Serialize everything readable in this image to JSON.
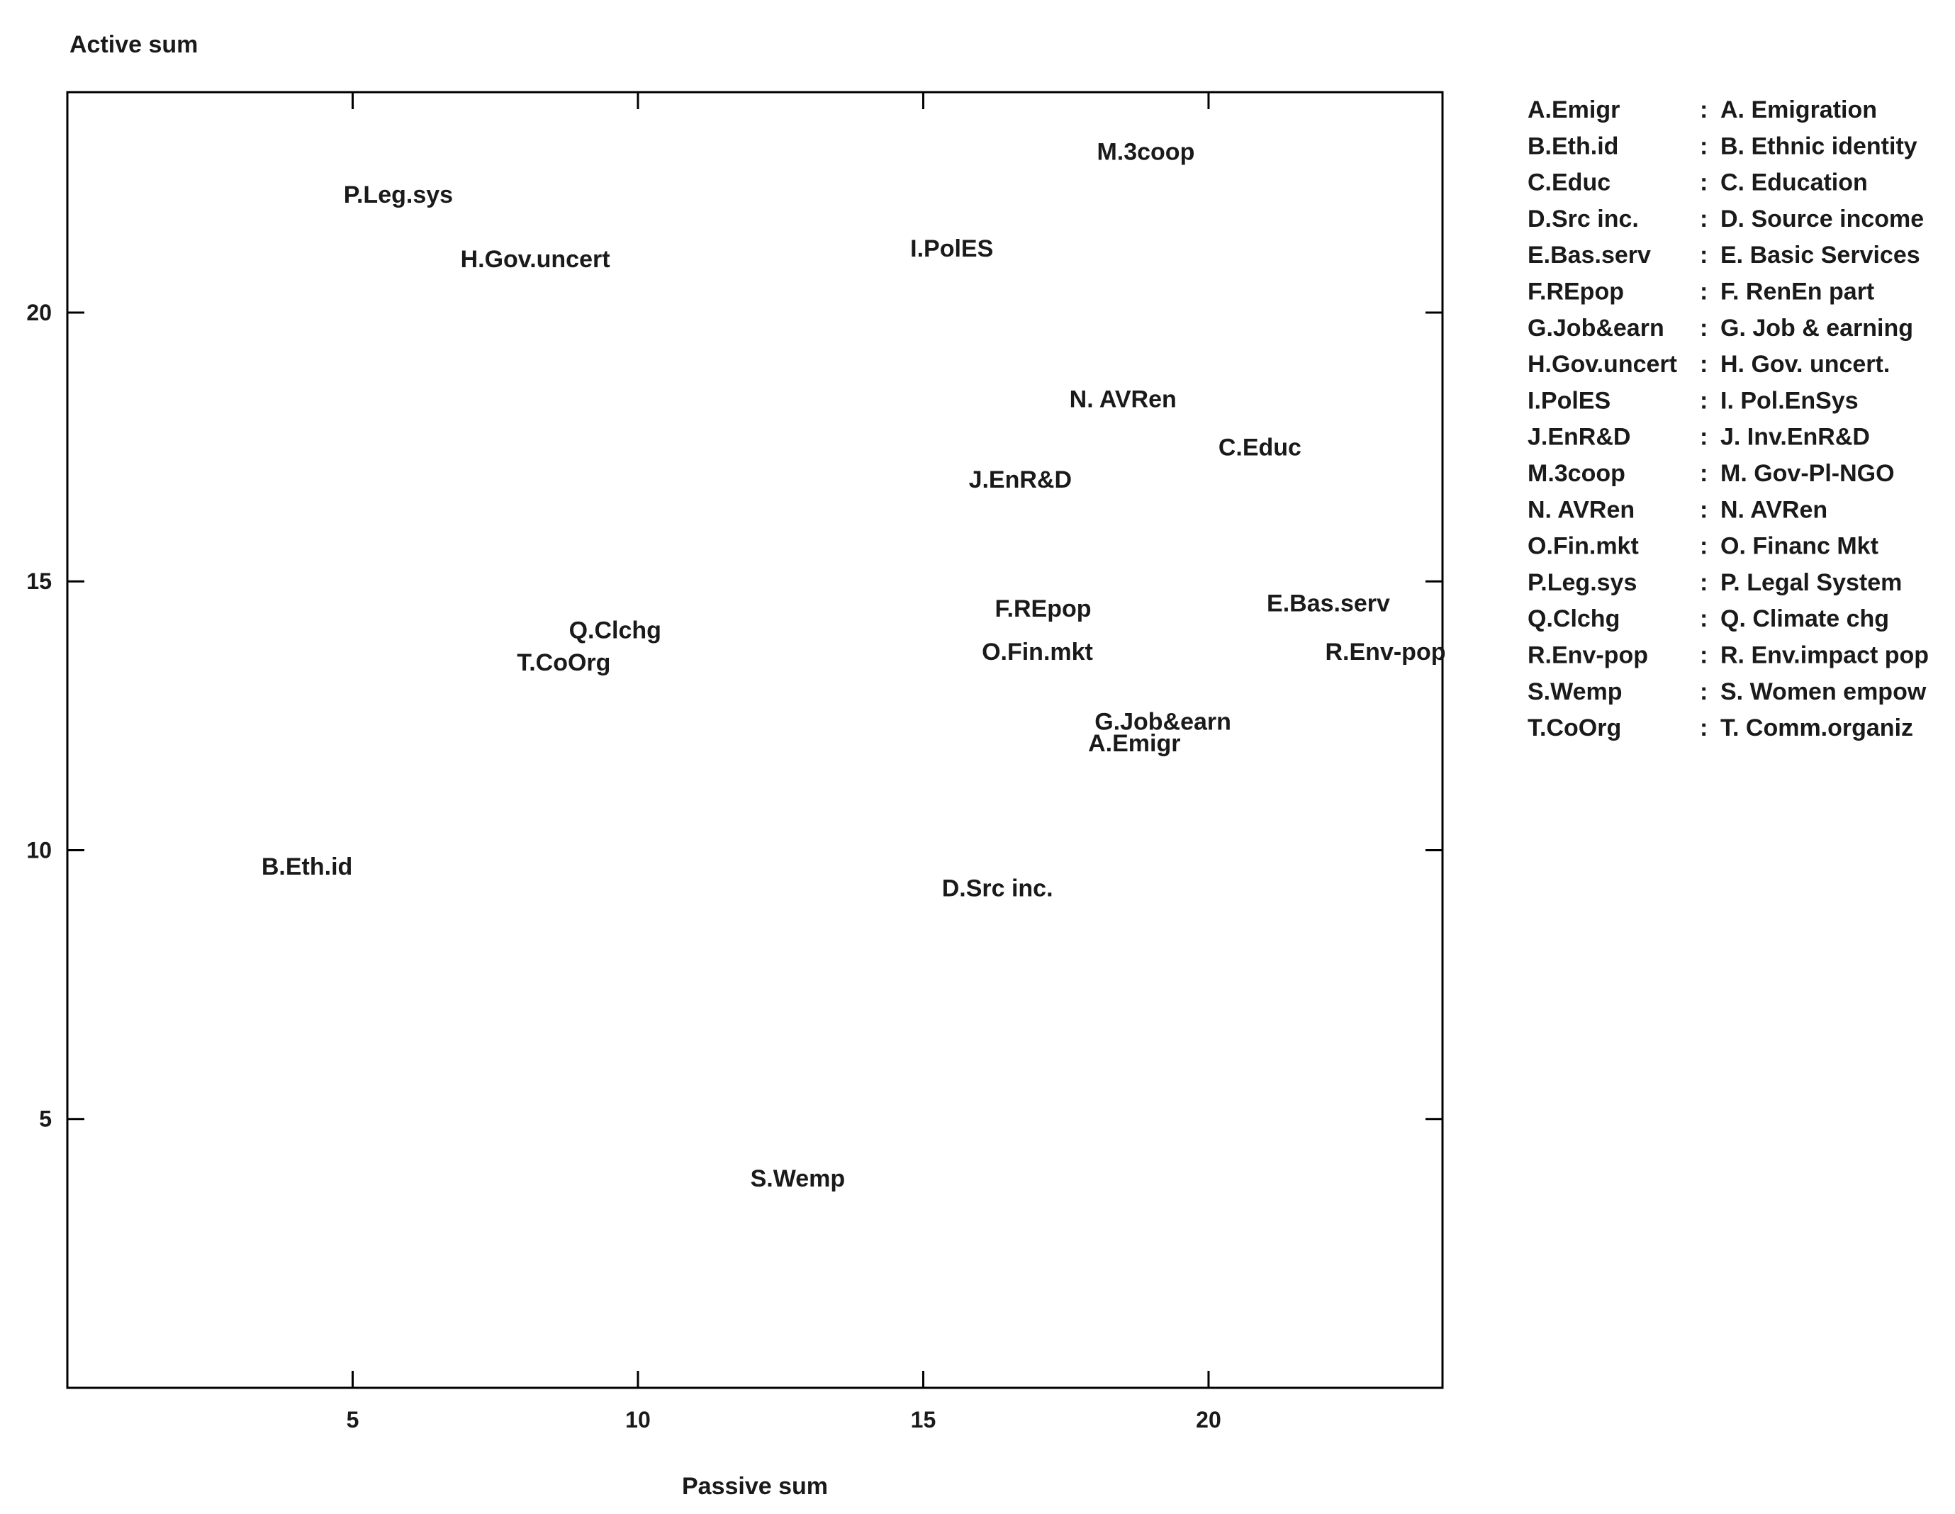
{
  "chart_data": {
    "type": "scatter",
    "title": "",
    "xlabel": "Passive sum",
    "ylabel": "Active sum",
    "xlim": [
      0,
      24.1
    ],
    "ylim": [
      0,
      24.1
    ],
    "x_ticks": [
      5,
      10,
      15,
      20
    ],
    "y_ticks": [
      5,
      10,
      15,
      20
    ],
    "grid": false,
    "legend_position": "right",
    "points": [
      {
        "label": "A.Emigr",
        "x": 18.7,
        "y": 12.0
      },
      {
        "label": "B.Eth.id",
        "x": 4.2,
        "y": 9.7
      },
      {
        "label": "C.Educ",
        "x": 20.9,
        "y": 17.5
      },
      {
        "label": "D.Src inc.",
        "x": 16.3,
        "y": 9.3
      },
      {
        "label": "E.Bas.serv",
        "x": 22.1,
        "y": 14.6
      },
      {
        "label": "F.REpop",
        "x": 17.1,
        "y": 14.5
      },
      {
        "label": "G.Job&earn",
        "x": 19.2,
        "y": 12.4
      },
      {
        "label": "H.Gov.uncert",
        "x": 8.2,
        "y": 21.0
      },
      {
        "label": "I.PolES",
        "x": 15.5,
        "y": 21.2
      },
      {
        "label": "J.EnR&D",
        "x": 16.7,
        "y": 16.9
      },
      {
        "label": "M.3coop",
        "x": 18.9,
        "y": 23.0
      },
      {
        "label": "N. AVRen",
        "x": 18.5,
        "y": 18.4
      },
      {
        "label": "O.Fin.mkt",
        "x": 17.0,
        "y": 13.7
      },
      {
        "label": "P.Leg.sys",
        "x": 5.8,
        "y": 22.2
      },
      {
        "label": "Q.Clchg",
        "x": 9.6,
        "y": 14.1
      },
      {
        "label": "R.Env-pop",
        "x": 23.1,
        "y": 13.7
      },
      {
        "label": "S.Wemp",
        "x": 12.8,
        "y": 3.9
      },
      {
        "label": "T.CoOrg",
        "x": 8.7,
        "y": 13.5
      }
    ],
    "legend": [
      {
        "code": "A.Emigr",
        "sep": ":",
        "name": "A. Emigration"
      },
      {
        "code": "B.Eth.id",
        "sep": ":",
        "name": "B. Ethnic identity"
      },
      {
        "code": "C.Educ",
        "sep": ":",
        "name": "C. Education"
      },
      {
        "code": "D.Src inc.",
        "sep": ":",
        "name": "D. Source income"
      },
      {
        "code": "E.Bas.serv",
        "sep": ":",
        "name": "E. Basic Services"
      },
      {
        "code": "F.REpop",
        "sep": ":",
        "name": "F. RenEn part"
      },
      {
        "code": "G.Job&earn",
        "sep": ":",
        "name": "G. Job & earning"
      },
      {
        "code": "H.Gov.uncert",
        "sep": ":",
        "name": "H. Gov. uncert."
      },
      {
        "code": "I.PolES",
        "sep": ":",
        "name": "I. Pol.EnSys"
      },
      {
        "code": "J.EnR&D",
        "sep": ":",
        "name": "J. Inv.EnR&D"
      },
      {
        "code": "M.3coop",
        "sep": ":",
        "name": "M. Gov-Pl-NGO"
      },
      {
        "code": "N. AVRen",
        "sep": ":",
        "name": "N. AVRen"
      },
      {
        "code": "O.Fin.mkt",
        "sep": ":",
        "name": "O. Financ Mkt"
      },
      {
        "code": "P.Leg.sys",
        "sep": ":",
        "name": "P. Legal System"
      },
      {
        "code": "Q.Clchg",
        "sep": ":",
        "name": "Q. Climate chg"
      },
      {
        "code": "R.Env-pop",
        "sep": ":",
        "name": "R. Env.impact pop"
      },
      {
        "code": "S.Wemp",
        "sep": ":",
        "name": "S. Women empow"
      },
      {
        "code": "T.CoOrg",
        "sep": ":",
        "name": "T. Comm.organiz"
      }
    ],
    "colors": {
      "text": "#1a1a1a",
      "axis": "#000000",
      "background": "#ffffff"
    }
  }
}
